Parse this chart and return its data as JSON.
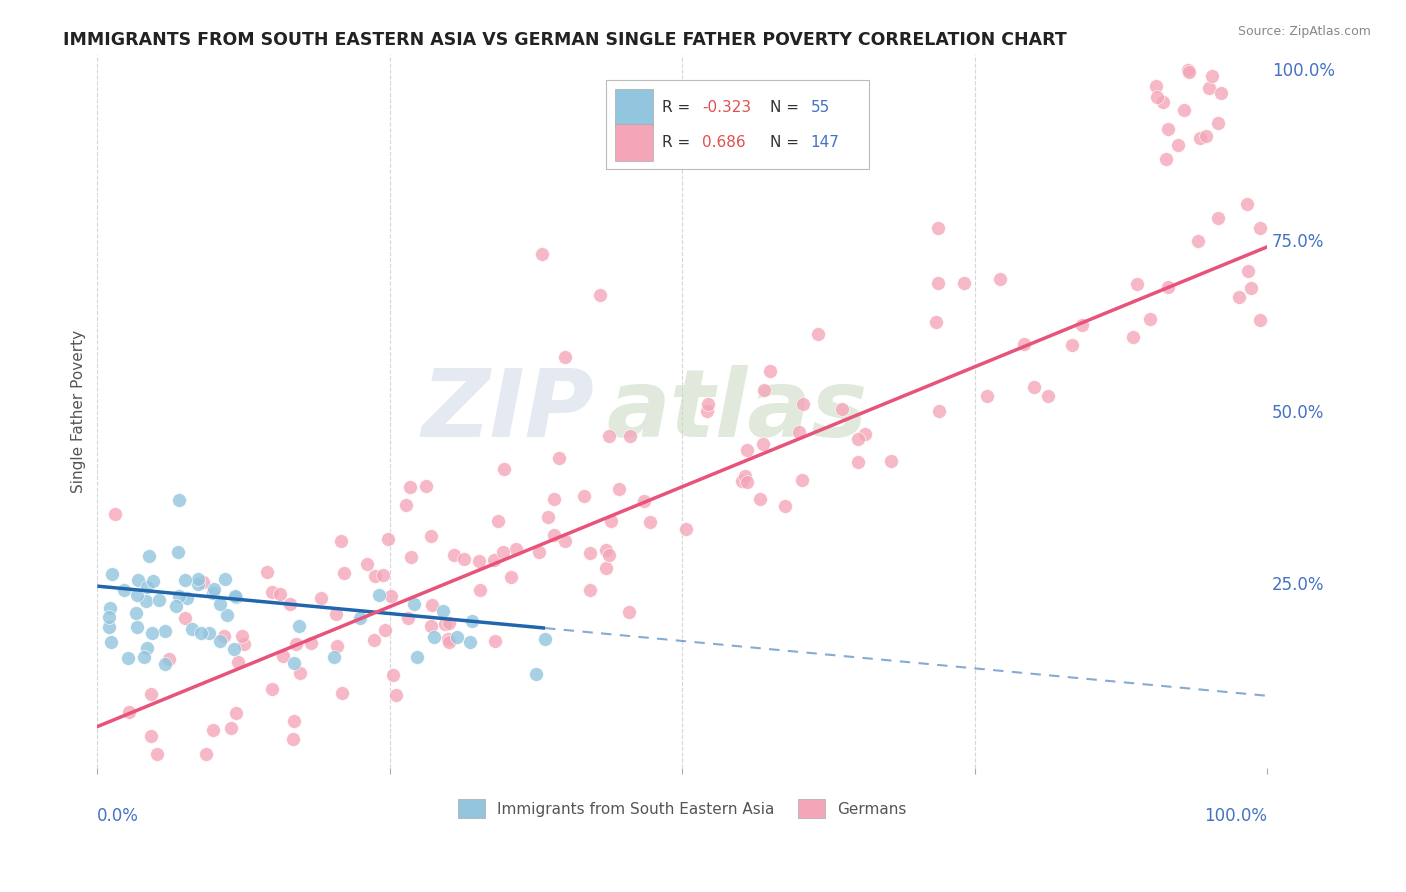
{
  "title": "IMMIGRANTS FROM SOUTH EASTERN ASIA VS GERMAN SINGLE FATHER POVERTY CORRELATION CHART",
  "source": "Source: ZipAtlas.com",
  "ylabel": "Single Father Poverty",
  "watermark_text": "ZIP",
  "watermark_text2": "atlas",
  "legend_label1": "Immigrants from South Eastern Asia",
  "legend_label2": "Germans",
  "blue_color": "#92c5de",
  "pink_color": "#f4a6b8",
  "blue_line_color": "#2166ac",
  "pink_line_color": "#e8537a",
  "background_color": "#ffffff",
  "title_color": "#222222",
  "right_axis_color": "#4472c4",
  "xlim": [
    0.0,
    1.0
  ],
  "ylim": [
    -0.02,
    1.02
  ],
  "ytick_vals": [
    0.0,
    0.25,
    0.5,
    0.75,
    1.0
  ],
  "ytick_labels": [
    "",
    "25.0%",
    "50.0%",
    "75.0%",
    "100.0%"
  ]
}
